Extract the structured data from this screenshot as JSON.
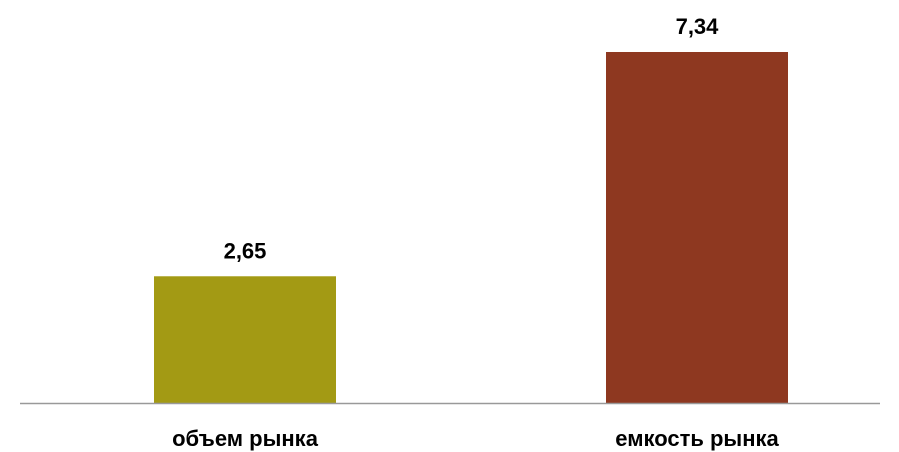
{
  "chart_data": {
    "type": "bar",
    "categories": [
      "объем рынка",
      "емкость рынка"
    ],
    "values": [
      2.65,
      7.34
    ],
    "value_labels": [
      "2,65",
      "7,34"
    ],
    "colors": [
      "#a39a14",
      "#8e3820"
    ],
    "axis_color": "#999999",
    "ylim": [
      0,
      7.34
    ],
    "grid": false,
    "legend": "none"
  }
}
